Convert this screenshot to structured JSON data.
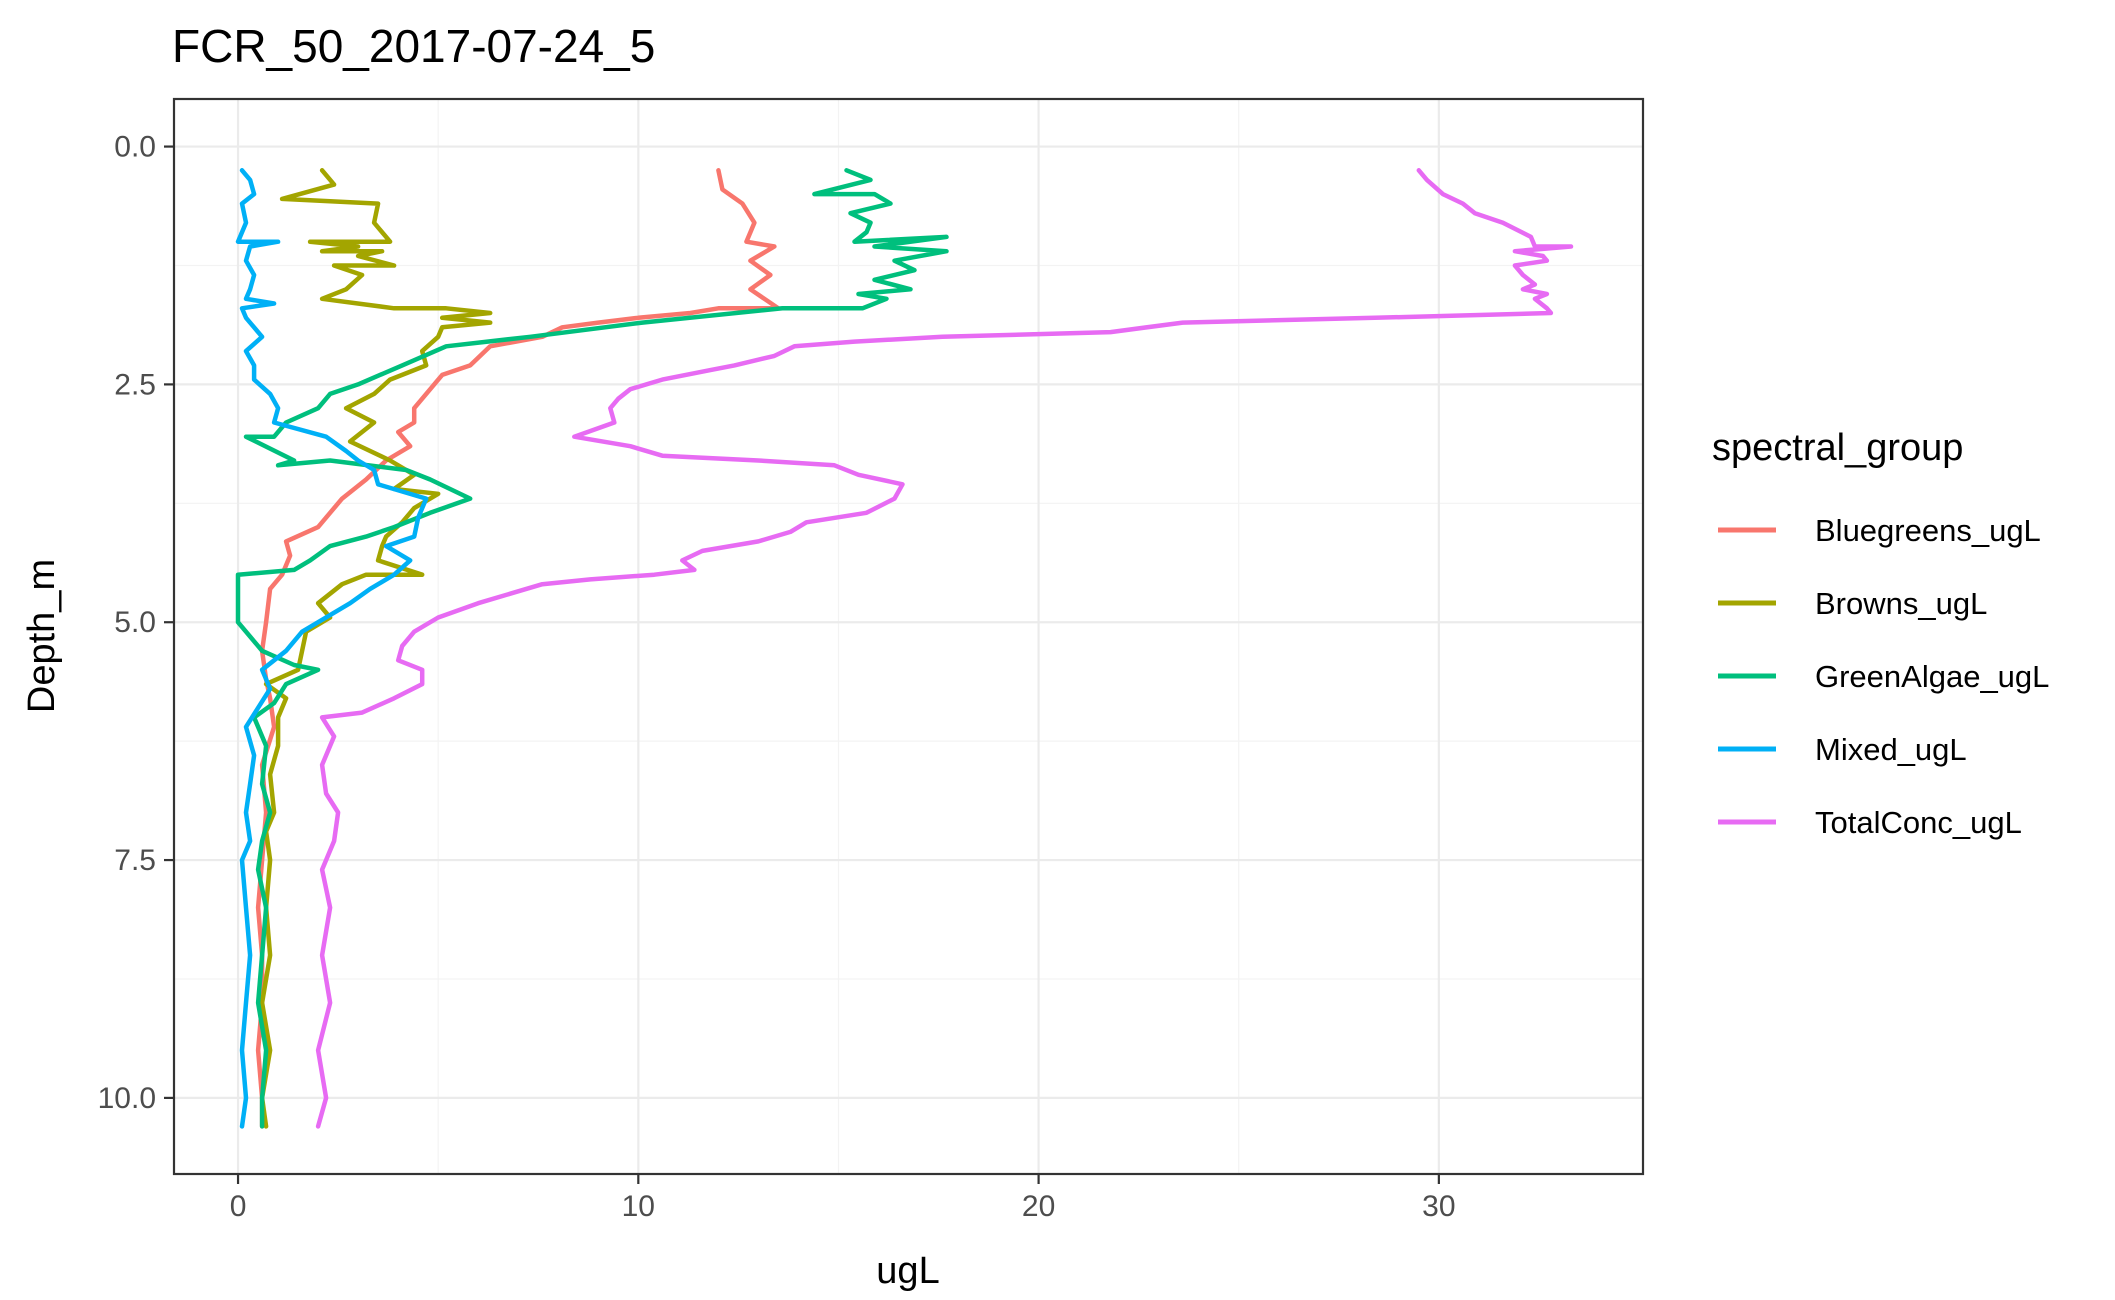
{
  "chart_data": {
    "type": "line",
    "title": "FCR_50_2017-07-24_5",
    "xlabel": "ugL",
    "ylabel": "Depth_m",
    "xlim": [
      -1.6,
      35.1
    ],
    "ylim": [
      10.8,
      -0.5
    ],
    "y_reversed": true,
    "x_ticks": [
      0,
      10,
      20,
      30
    ],
    "y_ticks": [
      0.0,
      2.5,
      5.0,
      7.5,
      10.0
    ],
    "x_tick_labels": [
      "0",
      "10",
      "20",
      "30"
    ],
    "y_tick_labels": [
      "0.0",
      "2.5",
      "5.0",
      "7.5",
      "10.0"
    ],
    "grid": true,
    "legend_position": "right",
    "legend_title": "spectral_group",
    "series": [
      {
        "name": "Bluegreens_ugL",
        "color": "#F8766D",
        "points": [
          [
            12.0,
            0.25
          ],
          [
            12.1,
            0.45
          ],
          [
            12.6,
            0.6
          ],
          [
            12.9,
            0.8
          ],
          [
            12.7,
            1.0
          ],
          [
            13.4,
            1.05
          ],
          [
            12.8,
            1.2
          ],
          [
            13.3,
            1.35
          ],
          [
            12.8,
            1.5
          ],
          [
            13.5,
            1.7
          ],
          [
            12.0,
            1.7
          ],
          [
            11.3,
            1.75
          ],
          [
            10.0,
            1.8
          ],
          [
            9.0,
            1.85
          ],
          [
            8.1,
            1.9
          ],
          [
            7.6,
            2.0
          ],
          [
            6.3,
            2.1
          ],
          [
            5.8,
            2.3
          ],
          [
            5.1,
            2.4
          ],
          [
            4.9,
            2.5
          ],
          [
            4.7,
            2.6
          ],
          [
            4.4,
            2.75
          ],
          [
            4.4,
            2.9
          ],
          [
            4.0,
            3.0
          ],
          [
            4.3,
            3.15
          ],
          [
            3.7,
            3.3
          ],
          [
            3.2,
            3.5
          ],
          [
            2.6,
            3.7
          ],
          [
            2.3,
            3.85
          ],
          [
            2.0,
            4.0
          ],
          [
            1.2,
            4.15
          ],
          [
            1.3,
            4.3
          ],
          [
            1.1,
            4.5
          ],
          [
            0.8,
            4.65
          ],
          [
            0.7,
            5.0
          ],
          [
            0.6,
            5.3
          ],
          [
            0.7,
            5.6
          ],
          [
            0.8,
            5.8
          ],
          [
            0.9,
            6.1
          ],
          [
            0.6,
            6.5
          ],
          [
            0.7,
            7.0
          ],
          [
            0.6,
            7.5
          ],
          [
            0.5,
            8.0
          ],
          [
            0.6,
            8.5
          ],
          [
            0.6,
            9.0
          ],
          [
            0.5,
            9.5
          ],
          [
            0.6,
            10.0
          ],
          [
            0.6,
            10.3
          ]
        ]
      },
      {
        "name": "Browns_ugL",
        "color": "#A3A500",
        "points": [
          [
            2.1,
            0.25
          ],
          [
            2.4,
            0.4
          ],
          [
            1.1,
            0.55
          ],
          [
            3.5,
            0.6
          ],
          [
            3.4,
            0.8
          ],
          [
            3.8,
            1.0
          ],
          [
            1.8,
            1.0
          ],
          [
            3.0,
            1.05
          ],
          [
            2.1,
            1.1
          ],
          [
            3.6,
            1.1
          ],
          [
            3.0,
            1.15
          ],
          [
            3.9,
            1.25
          ],
          [
            2.4,
            1.25
          ],
          [
            3.1,
            1.35
          ],
          [
            2.7,
            1.5
          ],
          [
            2.1,
            1.6
          ],
          [
            3.9,
            1.7
          ],
          [
            5.2,
            1.7
          ],
          [
            6.3,
            1.75
          ],
          [
            5.1,
            1.8
          ],
          [
            6.3,
            1.85
          ],
          [
            5.1,
            1.9
          ],
          [
            5.0,
            2.0
          ],
          [
            4.6,
            2.15
          ],
          [
            4.7,
            2.3
          ],
          [
            3.8,
            2.45
          ],
          [
            3.4,
            2.6
          ],
          [
            2.7,
            2.75
          ],
          [
            3.4,
            2.9
          ],
          [
            2.8,
            3.1
          ],
          [
            3.8,
            3.3
          ],
          [
            4.4,
            3.45
          ],
          [
            3.9,
            3.6
          ],
          [
            5.0,
            3.65
          ],
          [
            4.4,
            3.8
          ],
          [
            4.1,
            3.95
          ],
          [
            3.7,
            4.1
          ],
          [
            3.6,
            4.2
          ],
          [
            3.5,
            4.35
          ],
          [
            4.6,
            4.5
          ],
          [
            3.2,
            4.5
          ],
          [
            2.6,
            4.6
          ],
          [
            2.0,
            4.8
          ],
          [
            2.3,
            4.95
          ],
          [
            1.7,
            5.1
          ],
          [
            1.6,
            5.3
          ],
          [
            1.5,
            5.5
          ],
          [
            0.7,
            5.65
          ],
          [
            1.2,
            5.8
          ],
          [
            1.0,
            6.0
          ],
          [
            1.0,
            6.3
          ],
          [
            0.8,
            6.6
          ],
          [
            0.9,
            7.0
          ],
          [
            0.7,
            7.2
          ],
          [
            0.8,
            7.5
          ],
          [
            0.7,
            8.0
          ],
          [
            0.8,
            8.5
          ],
          [
            0.6,
            9.0
          ],
          [
            0.8,
            9.5
          ],
          [
            0.6,
            10.0
          ],
          [
            0.7,
            10.3
          ]
        ]
      },
      {
        "name": "GreenAlgae_ugL",
        "color": "#00BF7D",
        "points": [
          [
            15.2,
            0.25
          ],
          [
            15.8,
            0.35
          ],
          [
            14.4,
            0.5
          ],
          [
            15.9,
            0.5
          ],
          [
            16.3,
            0.6
          ],
          [
            15.3,
            0.7
          ],
          [
            15.8,
            0.8
          ],
          [
            15.7,
            0.9
          ],
          [
            15.4,
            1.0
          ],
          [
            17.7,
            0.95
          ],
          [
            15.9,
            1.05
          ],
          [
            17.7,
            1.1
          ],
          [
            16.4,
            1.2
          ],
          [
            16.9,
            1.3
          ],
          [
            15.9,
            1.4
          ],
          [
            16.8,
            1.5
          ],
          [
            15.5,
            1.55
          ],
          [
            16.2,
            1.6
          ],
          [
            15.6,
            1.7
          ],
          [
            13.6,
            1.7
          ],
          [
            10.1,
            1.85
          ],
          [
            7.3,
            2.0
          ],
          [
            5.2,
            2.1
          ],
          [
            4.1,
            2.3
          ],
          [
            3.0,
            2.5
          ],
          [
            2.3,
            2.6
          ],
          [
            2.0,
            2.75
          ],
          [
            1.2,
            2.9
          ],
          [
            0.9,
            3.05
          ],
          [
            0.2,
            3.05
          ],
          [
            1.4,
            3.3
          ],
          [
            1.0,
            3.35
          ],
          [
            2.3,
            3.3
          ],
          [
            4.2,
            3.4
          ],
          [
            4.8,
            3.5
          ],
          [
            5.8,
            3.7
          ],
          [
            4.8,
            3.85
          ],
          [
            3.9,
            4.0
          ],
          [
            3.2,
            4.1
          ],
          [
            2.3,
            4.2
          ],
          [
            1.8,
            4.35
          ],
          [
            1.4,
            4.45
          ],
          [
            0.0,
            4.5
          ],
          [
            0.0,
            5.0
          ],
          [
            0.6,
            5.3
          ],
          [
            1.4,
            5.45
          ],
          [
            2.0,
            5.5
          ],
          [
            1.2,
            5.65
          ],
          [
            0.9,
            5.85
          ],
          [
            0.4,
            6.0
          ],
          [
            0.7,
            6.3
          ],
          [
            0.6,
            6.7
          ],
          [
            0.8,
            7.0
          ],
          [
            0.6,
            7.3
          ],
          [
            0.5,
            7.6
          ],
          [
            0.7,
            8.0
          ],
          [
            0.6,
            8.5
          ],
          [
            0.5,
            9.0
          ],
          [
            0.7,
            9.5
          ],
          [
            0.6,
            10.0
          ],
          [
            0.6,
            10.3
          ]
        ]
      },
      {
        "name": "Mixed_ugL",
        "color": "#00B0F6",
        "points": [
          [
            0.1,
            0.25
          ],
          [
            0.3,
            0.35
          ],
          [
            0.4,
            0.5
          ],
          [
            0.1,
            0.6
          ],
          [
            0.2,
            0.8
          ],
          [
            0.0,
            1.0
          ],
          [
            1.0,
            1.0
          ],
          [
            0.3,
            1.05
          ],
          [
            0.2,
            1.2
          ],
          [
            0.4,
            1.35
          ],
          [
            0.3,
            1.5
          ],
          [
            0.2,
            1.6
          ],
          [
            0.9,
            1.65
          ],
          [
            0.1,
            1.7
          ],
          [
            0.2,
            1.8
          ],
          [
            0.6,
            2.0
          ],
          [
            0.2,
            2.15
          ],
          [
            0.4,
            2.3
          ],
          [
            0.4,
            2.45
          ],
          [
            0.8,
            2.6
          ],
          [
            1.0,
            2.75
          ],
          [
            0.9,
            2.9
          ],
          [
            2.2,
            3.05
          ],
          [
            2.7,
            3.2
          ],
          [
            3.0,
            3.3
          ],
          [
            3.4,
            3.4
          ],
          [
            3.5,
            3.55
          ],
          [
            4.7,
            3.7
          ],
          [
            4.5,
            3.9
          ],
          [
            4.4,
            4.1
          ],
          [
            3.7,
            4.2
          ],
          [
            4.3,
            4.35
          ],
          [
            3.9,
            4.5
          ],
          [
            3.3,
            4.65
          ],
          [
            2.8,
            4.8
          ],
          [
            1.6,
            5.1
          ],
          [
            1.2,
            5.3
          ],
          [
            0.6,
            5.5
          ],
          [
            0.8,
            5.7
          ],
          [
            0.5,
            5.9
          ],
          [
            0.2,
            6.1
          ],
          [
            0.4,
            6.4
          ],
          [
            0.3,
            6.7
          ],
          [
            0.2,
            7.0
          ],
          [
            0.3,
            7.3
          ],
          [
            0.1,
            7.5
          ],
          [
            0.2,
            8.0
          ],
          [
            0.3,
            8.5
          ],
          [
            0.2,
            9.0
          ],
          [
            0.1,
            9.5
          ],
          [
            0.2,
            10.0
          ],
          [
            0.1,
            10.3
          ]
        ]
      },
      {
        "name": "TotalConc_ugL",
        "color": "#E76BF3",
        "points": [
          [
            29.5,
            0.25
          ],
          [
            29.7,
            0.35
          ],
          [
            30.1,
            0.5
          ],
          [
            30.6,
            0.6
          ],
          [
            30.9,
            0.7
          ],
          [
            31.6,
            0.8
          ],
          [
            32.3,
            0.95
          ],
          [
            32.4,
            1.05
          ],
          [
            33.3,
            1.05
          ],
          [
            31.9,
            1.1
          ],
          [
            32.6,
            1.15
          ],
          [
            32.7,
            1.2
          ],
          [
            31.9,
            1.25
          ],
          [
            32.1,
            1.35
          ],
          [
            32.4,
            1.45
          ],
          [
            32.1,
            1.5
          ],
          [
            32.7,
            1.55
          ],
          [
            32.4,
            1.6
          ],
          [
            32.7,
            1.7
          ],
          [
            32.8,
            1.75
          ],
          [
            28.4,
            1.8
          ],
          [
            23.6,
            1.85
          ],
          [
            21.8,
            1.95
          ],
          [
            17.6,
            2.0
          ],
          [
            15.4,
            2.05
          ],
          [
            13.9,
            2.1
          ],
          [
            13.4,
            2.2
          ],
          [
            12.4,
            2.3
          ],
          [
            11.8,
            2.35
          ],
          [
            10.6,
            2.45
          ],
          [
            9.8,
            2.55
          ],
          [
            9.5,
            2.65
          ],
          [
            9.3,
            2.75
          ],
          [
            9.4,
            2.9
          ],
          [
            8.4,
            3.05
          ],
          [
            9.8,
            3.15
          ],
          [
            10.6,
            3.25
          ],
          [
            13.0,
            3.3
          ],
          [
            14.9,
            3.35
          ],
          [
            15.5,
            3.45
          ],
          [
            16.6,
            3.55
          ],
          [
            16.4,
            3.7
          ],
          [
            15.7,
            3.85
          ],
          [
            14.2,
            3.95
          ],
          [
            13.8,
            4.05
          ],
          [
            13.0,
            4.15
          ],
          [
            11.6,
            4.25
          ],
          [
            11.1,
            4.35
          ],
          [
            11.4,
            4.45
          ],
          [
            10.4,
            4.5
          ],
          [
            8.8,
            4.55
          ],
          [
            7.6,
            4.6
          ],
          [
            6.8,
            4.7
          ],
          [
            6.0,
            4.8
          ],
          [
            5.0,
            4.95
          ],
          [
            4.4,
            5.1
          ],
          [
            4.1,
            5.25
          ],
          [
            4.0,
            5.4
          ],
          [
            4.6,
            5.5
          ],
          [
            4.6,
            5.65
          ],
          [
            3.9,
            5.8
          ],
          [
            3.1,
            5.95
          ],
          [
            2.1,
            6.0
          ],
          [
            2.4,
            6.2
          ],
          [
            2.1,
            6.5
          ],
          [
            2.2,
            6.8
          ],
          [
            2.5,
            7.0
          ],
          [
            2.4,
            7.3
          ],
          [
            2.1,
            7.6
          ],
          [
            2.3,
            8.0
          ],
          [
            2.1,
            8.5
          ],
          [
            2.3,
            9.0
          ],
          [
            2.0,
            9.5
          ],
          [
            2.2,
            10.0
          ],
          [
            2.0,
            10.3
          ]
        ]
      }
    ]
  }
}
